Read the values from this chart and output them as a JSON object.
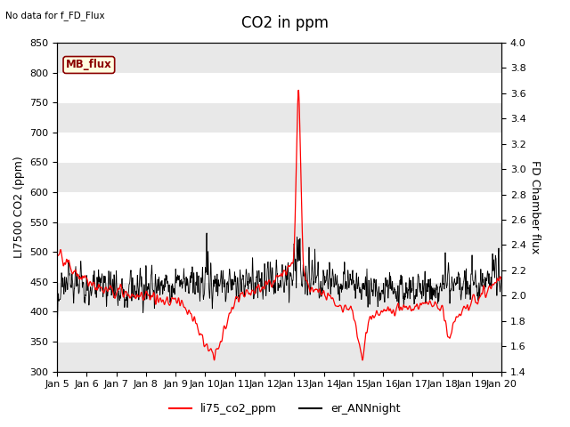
{
  "title": "CO2 in ppm",
  "top_left_text": "No data for f_FD_Flux",
  "ylabel_left": "LI7500 CO2 (ppm)",
  "ylabel_right": "FD Chamber flux",
  "ylim_left": [
    300,
    850
  ],
  "ylim_right": [
    1.4,
    4.0
  ],
  "yticks_left": [
    300,
    350,
    400,
    450,
    500,
    550,
    600,
    650,
    700,
    750,
    800,
    850
  ],
  "yticks_right": [
    1.4,
    1.6,
    1.8,
    2.0,
    2.2,
    2.4,
    2.6,
    2.8,
    3.0,
    3.2,
    3.4,
    3.6,
    3.8,
    4.0
  ],
  "xtick_labels": [
    "Jan 5",
    "Jan 6",
    "Jan 7",
    "Jan 8",
    "Jan 9",
    "Jan 10",
    "Jan 11",
    "Jan 12",
    "Jan 13",
    "Jan 14",
    "Jan 15",
    "Jan 16",
    "Jan 17",
    "Jan 18",
    "Jan 19",
    "Jan 20"
  ],
  "legend_label_red": "li75_co2_ppm",
  "legend_label_black": "er_ANNnight",
  "mb_flux_label": "MB_flux",
  "red_color": "#FF0000",
  "black_color": "#000000",
  "bg_color": "#FFFFFF",
  "band_color": "#E8E8E8",
  "title_fontsize": 12,
  "label_fontsize": 9,
  "tick_fontsize": 8
}
